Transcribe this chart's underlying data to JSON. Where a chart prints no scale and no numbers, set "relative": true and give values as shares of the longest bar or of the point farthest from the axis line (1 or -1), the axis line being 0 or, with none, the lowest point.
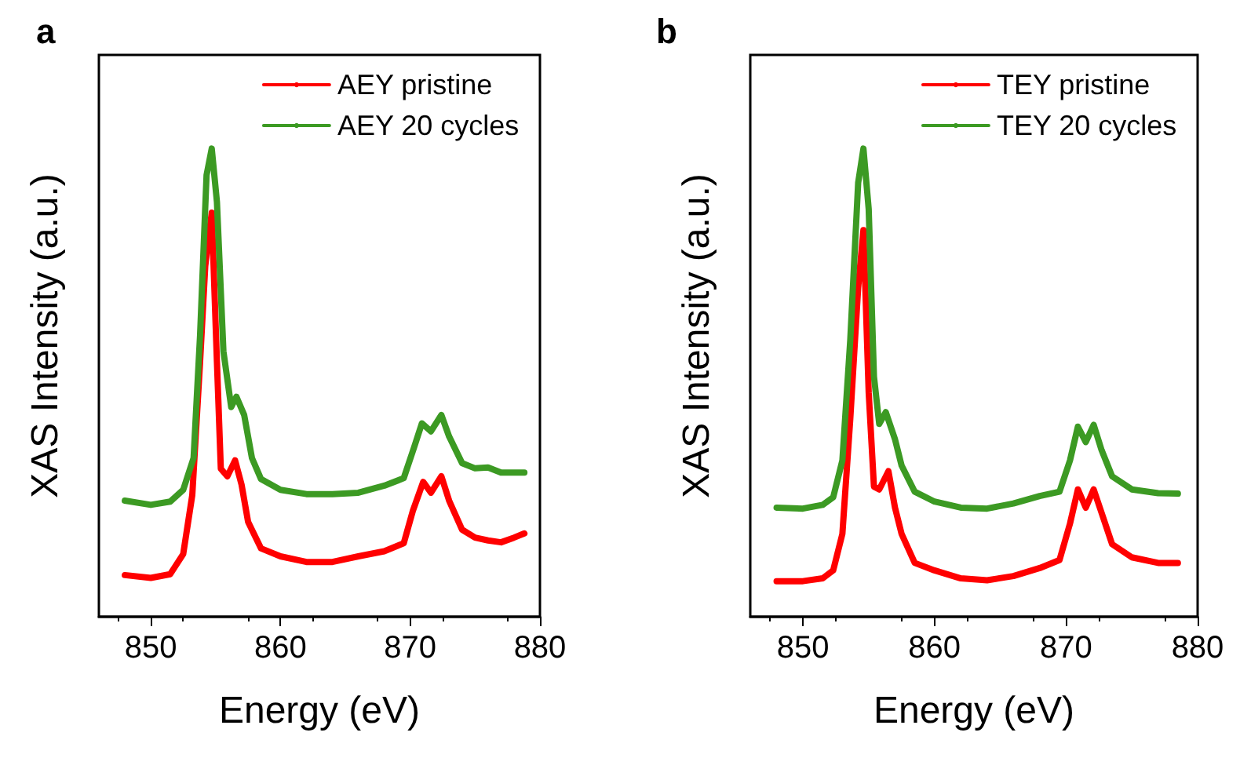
{
  "chart_data": [
    {
      "type": "line",
      "title": "a",
      "xlabel": "Energy (eV)",
      "ylabel": "XAS Intensity (a.u.)",
      "relative": true,
      "xlim": [
        846,
        880
      ],
      "xticks": [
        850,
        860,
        870,
        880
      ],
      "legend": "top right",
      "marker": "none",
      "line_style": "solid",
      "grid": false,
      "series": [
        {
          "name": "AEY pristine",
          "color": "#ff0000",
          "x": [
            848,
            850,
            851.5,
            852.5,
            853.2,
            853.8,
            854.2,
            854.7,
            855.1,
            855.4,
            855.9,
            856.5,
            857,
            857.5,
            858.5,
            860,
            862,
            864,
            866,
            868,
            869.5,
            870.2,
            871,
            871.6,
            872.4,
            873,
            874,
            875,
            876,
            877,
            878,
            878.8
          ],
          "values": [
            0.089,
            0.083,
            0.091,
            0.134,
            0.26,
            0.544,
            0.749,
            0.863,
            0.544,
            0.316,
            0.3,
            0.334,
            0.282,
            0.203,
            0.146,
            0.129,
            0.117,
            0.117,
            0.129,
            0.14,
            0.157,
            0.226,
            0.288,
            0.265,
            0.3,
            0.248,
            0.186,
            0.169,
            0.163,
            0.159,
            0.169,
            0.178
          ]
        },
        {
          "name": "AEY 20 cycles",
          "color": "#3c9a23",
          "x": [
            848,
            850,
            851.5,
            852.5,
            853.3,
            853.8,
            854.3,
            854.7,
            855.1,
            855.6,
            856.2,
            856.6,
            857.2,
            857.8,
            858.5,
            860,
            862,
            864,
            866,
            868,
            869.5,
            870.3,
            870.9,
            871.6,
            872.4,
            873,
            874,
            875,
            876,
            877,
            878.8
          ],
          "values": [
            0.248,
            0.239,
            0.246,
            0.271,
            0.339,
            0.601,
            0.943,
            1,
            0.886,
            0.567,
            0.448,
            0.47,
            0.431,
            0.339,
            0.294,
            0.271,
            0.262,
            0.262,
            0.265,
            0.28,
            0.296,
            0.362,
            0.413,
            0.396,
            0.431,
            0.385,
            0.328,
            0.317,
            0.319,
            0.308,
            0.308
          ]
        }
      ]
    },
    {
      "type": "line",
      "title": "b",
      "xlabel": "Energy (eV)",
      "ylabel": "XAS Intensity (a.u.)",
      "relative": true,
      "xlim": [
        846,
        880
      ],
      "xticks": [
        850,
        860,
        870,
        880
      ],
      "legend": "top right",
      "marker": "none",
      "line_style": "solid",
      "grid": false,
      "series": [
        {
          "name": "TEY pristine",
          "color": "#ff0000",
          "x": [
            848,
            850,
            851.5,
            852.3,
            853,
            853.6,
            854.2,
            854.6,
            855,
            855.4,
            855.8,
            856.5,
            857,
            857.5,
            858.5,
            860,
            862,
            864,
            866,
            868,
            869.5,
            870.3,
            870.9,
            871.5,
            872.1,
            872.7,
            873.5,
            875,
            877,
            878.5
          ],
          "values": [
            0.076,
            0.076,
            0.082,
            0.099,
            0.177,
            0.423,
            0.703,
            0.826,
            0.479,
            0.278,
            0.272,
            0.311,
            0.233,
            0.177,
            0.115,
            0.099,
            0.082,
            0.078,
            0.087,
            0.104,
            0.121,
            0.199,
            0.272,
            0.233,
            0.272,
            0.222,
            0.155,
            0.127,
            0.115,
            0.115
          ]
        },
        {
          "name": "TEY 20 cycles",
          "color": "#3c9a23",
          "x": [
            848,
            850,
            851.5,
            852.3,
            853,
            853.6,
            854.2,
            854.6,
            855,
            855.4,
            855.8,
            856.3,
            857,
            857.5,
            858.5,
            860,
            862,
            864,
            866,
            868,
            869.5,
            870.3,
            870.9,
            871.5,
            872.1,
            872.7,
            873.5,
            875,
            877,
            878.5
          ],
          "values": [
            0.233,
            0.231,
            0.239,
            0.255,
            0.334,
            0.591,
            0.927,
            1,
            0.871,
            0.513,
            0.412,
            0.437,
            0.379,
            0.323,
            0.267,
            0.246,
            0.233,
            0.231,
            0.242,
            0.258,
            0.267,
            0.334,
            0.406,
            0.373,
            0.41,
            0.356,
            0.3,
            0.272,
            0.264,
            0.263
          ]
        }
      ]
    }
  ]
}
